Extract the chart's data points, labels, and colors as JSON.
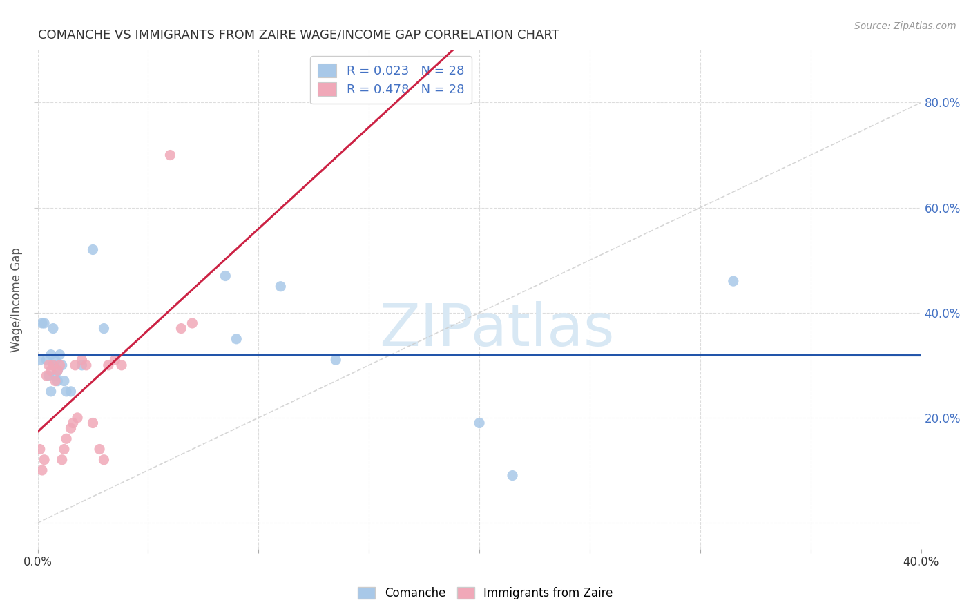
{
  "title": "COMANCHE VS IMMIGRANTS FROM ZAIRE WAGE/INCOME GAP CORRELATION CHART",
  "source": "Source: ZipAtlas.com",
  "ylabel": "Wage/Income Gap",
  "xlim": [
    0.0,
    0.4
  ],
  "ylim": [
    -0.05,
    0.9
  ],
  "xticks": [
    0.0,
    0.05,
    0.1,
    0.15,
    0.2,
    0.25,
    0.3,
    0.35,
    0.4
  ],
  "xticklabels": [
    "0.0%",
    "",
    "",
    "",
    "",
    "",
    "",
    "",
    "40.0%"
  ],
  "yticks": [
    0.0,
    0.2,
    0.4,
    0.6,
    0.8
  ],
  "yticklabels_right": [
    "",
    "20.0%",
    "40.0%",
    "60.0%",
    "80.0%"
  ],
  "comanche_r": "0.023",
  "comanche_n": "28",
  "zaire_r": "0.478",
  "zaire_n": "28",
  "comanche_color": "#a8c8e8",
  "zaire_color": "#f0a8b8",
  "trend_comanche_color": "#2255aa",
  "trend_zaire_color": "#cc2244",
  "diagonal_color": "#cccccc",
  "background_color": "#ffffff",
  "right_label_color": "#4472c4",
  "comanche_x": [
    0.001,
    0.002,
    0.003,
    0.004,
    0.005,
    0.006,
    0.006,
    0.007,
    0.007,
    0.008,
    0.008,
    0.009,
    0.009,
    0.01,
    0.011,
    0.012,
    0.013,
    0.015,
    0.02,
    0.025,
    0.03,
    0.085,
    0.09,
    0.11,
    0.135,
    0.2,
    0.215,
    0.315
  ],
  "comanche_y": [
    0.31,
    0.38,
    0.38,
    0.31,
    0.28,
    0.25,
    0.32,
    0.3,
    0.37,
    0.28,
    0.31,
    0.29,
    0.27,
    0.32,
    0.3,
    0.27,
    0.25,
    0.25,
    0.3,
    0.52,
    0.37,
    0.47,
    0.35,
    0.45,
    0.31,
    0.19,
    0.09,
    0.46
  ],
  "zaire_x": [
    0.001,
    0.002,
    0.003,
    0.004,
    0.005,
    0.006,
    0.007,
    0.008,
    0.009,
    0.01,
    0.011,
    0.012,
    0.013,
    0.015,
    0.016,
    0.017,
    0.018,
    0.02,
    0.022,
    0.025,
    0.028,
    0.03,
    0.032,
    0.035,
    0.038,
    0.06,
    0.065,
    0.07
  ],
  "zaire_y": [
    0.14,
    0.1,
    0.12,
    0.28,
    0.3,
    0.29,
    0.3,
    0.27,
    0.29,
    0.3,
    0.12,
    0.14,
    0.16,
    0.18,
    0.19,
    0.3,
    0.2,
    0.31,
    0.3,
    0.19,
    0.14,
    0.12,
    0.3,
    0.31,
    0.3,
    0.7,
    0.37,
    0.38
  ],
  "watermark": "ZIPatlas",
  "watermark_color": "#d8e8f4",
  "comanche_label": "Comanche",
  "zaire_label": "Immigrants from Zaire"
}
